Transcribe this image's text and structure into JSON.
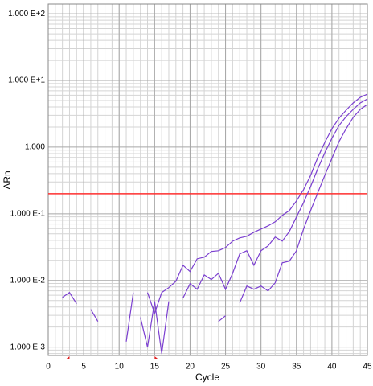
{
  "chart_data": {
    "type": "line",
    "ylabel": "ΔRn",
    "xlabel": "Cycle",
    "log_y": true,
    "grid": true,
    "minor_grid": true,
    "xlim": [
      0,
      45
    ],
    "xticks": [
      0,
      5,
      10,
      15,
      20,
      25,
      30,
      35,
      40,
      45
    ],
    "ylim": [
      0.00075,
      140
    ],
    "yticks": [
      {
        "value": 0.001,
        "label": "1.000 E-3"
      },
      {
        "value": 0.01,
        "label": "1.000 E-2"
      },
      {
        "value": 0.1,
        "label": "1.000 E-1"
      },
      {
        "value": 1,
        "label": "1.000"
      },
      {
        "value": 10,
        "label": "1.000 E+1"
      },
      {
        "value": 100,
        "label": "1.000 E+2"
      }
    ],
    "threshold": 0.2,
    "threshold_color": "#ff3030",
    "baseline": [
      3,
      15
    ],
    "baseline_color": "#e02020",
    "x": [
      1,
      2,
      3,
      4,
      5,
      6,
      7,
      8,
      9,
      10,
      11,
      12,
      13,
      14,
      15,
      16,
      17,
      18,
      19,
      20,
      21,
      22,
      23,
      24,
      25,
      26,
      27,
      28,
      29,
      30,
      31,
      32,
      33,
      34,
      35,
      36,
      37,
      38,
      39,
      40,
      41,
      42,
      43,
      44,
      45
    ],
    "series": [
      {
        "color": "#7b3fd0",
        "values": [
          null,
          0.00558,
          0.00659,
          0.00448,
          null,
          0.00368,
          0.00243,
          null,
          null,
          null,
          0.00121,
          0.00659,
          null,
          0.00659,
          0.00321,
          0.00659,
          0.0078,
          0.00973,
          0.0169,
          0.0136,
          0.0211,
          0.0223,
          0.0272,
          0.0279,
          0.0312,
          0.0389,
          0.0435,
          0.046,
          0.0528,
          0.059,
          0.0659,
          0.0759,
          0.0946,
          0.112,
          0.156,
          0.23,
          0.378,
          0.697,
          1.18,
          1.89,
          2.72,
          3.58,
          4.6,
          5.58,
          6.24
        ]
      },
      {
        "color": "#7b3fd0",
        "values": [
          null,
          null,
          null,
          null,
          null,
          null,
          null,
          null,
          null,
          null,
          null,
          null,
          null,
          null,
          null,
          null,
          null,
          null,
          0.00543,
          0.00895,
          0.00737,
          0.0121,
          0.0103,
          0.0128,
          0.00737,
          0.0128,
          0.025,
          0.0279,
          0.0169,
          0.0279,
          0.033,
          0.0448,
          0.0389,
          0.0543,
          0.0895,
          0.147,
          0.257,
          0.473,
          0.824,
          1.36,
          2.11,
          2.87,
          3.68,
          4.6,
          5.28
        ]
      },
      {
        "color": "#7b3fd0",
        "values": [
          null,
          null,
          null,
          null,
          null,
          null,
          null,
          null,
          null,
          null,
          null,
          null,
          0.00279,
          0.001,
          0.00486,
          0.0008,
          0.00486,
          null,
          null,
          null,
          null,
          null,
          null,
          0.00243,
          0.00295,
          null,
          0.0046,
          0.00824,
          0.00737,
          0.00824,
          0.00697,
          0.0092,
          0.0184,
          0.0195,
          0.0279,
          0.059,
          0.112,
          0.206,
          0.378,
          0.678,
          1.21,
          1.89,
          2.79,
          3.68,
          4.36
        ]
      }
    ]
  }
}
